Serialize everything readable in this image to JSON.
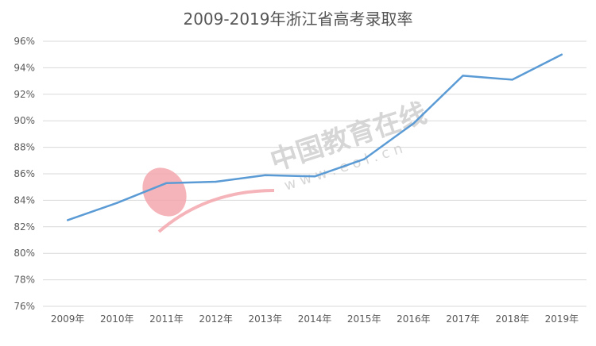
{
  "chart_data": {
    "type": "line",
    "title": "2009-2019年浙江省高考录取率",
    "xlabel": "",
    "ylabel": "",
    "categories": [
      "2009年",
      "2010年",
      "2011年",
      "2012年",
      "2013年",
      "2014年",
      "2015年",
      "2016年",
      "2017年",
      "2018年",
      "2019年"
    ],
    "series": [
      {
        "values": [
          82.5,
          83.8,
          85.3,
          85.4,
          85.9,
          85.8,
          87.1,
          89.8,
          93.4,
          93.1,
          95.0
        ]
      }
    ],
    "ylim": [
      76,
      96
    ],
    "yticks": [
      "76%",
      "78%",
      "80%",
      "82%",
      "84%",
      "86%",
      "88%",
      "90%",
      "92%",
      "94%",
      "96%"
    ],
    "grid": true,
    "legend": "none",
    "colors": {
      "line": "#5b9bd5",
      "grid": "#d9d9d9",
      "watermark": "#f4a7ad"
    }
  },
  "watermark": {
    "brand": "中国教育在线",
    "url": "w w w . e o l . c n"
  }
}
